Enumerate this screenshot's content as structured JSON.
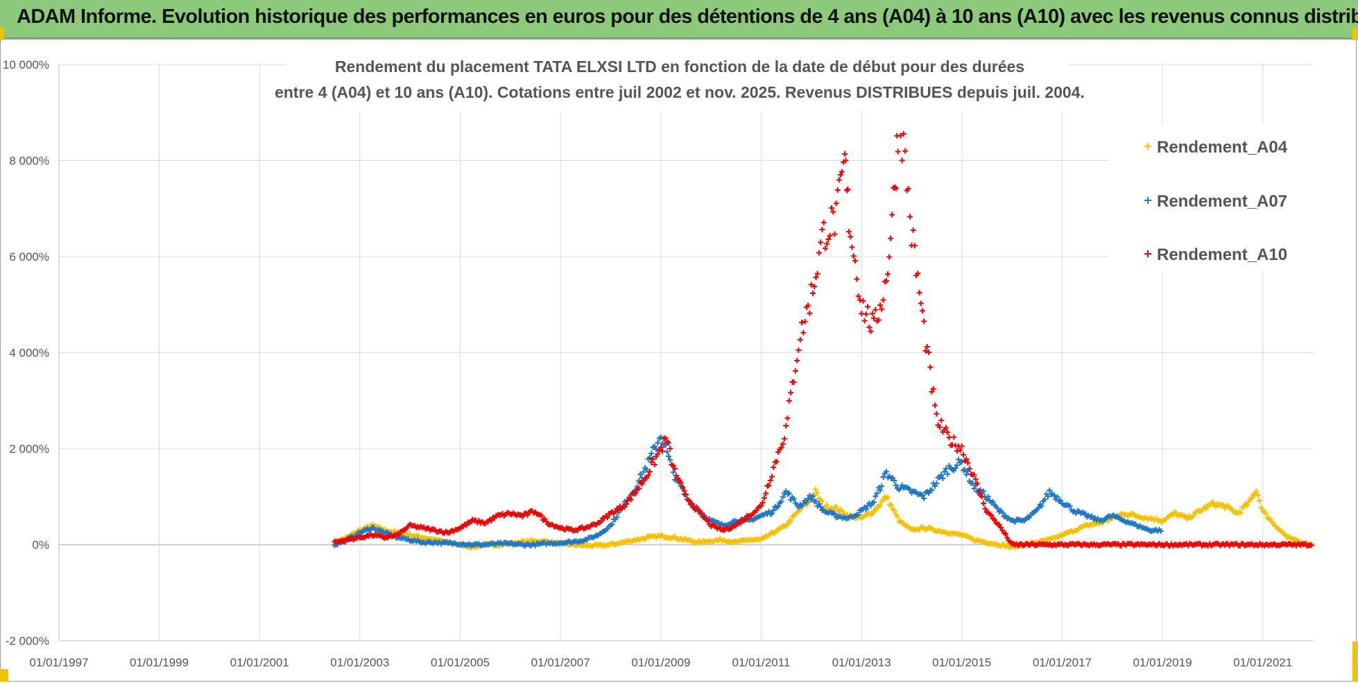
{
  "banner": {
    "title": "ADAM Informe. Evolution historique des performances en euros pour des détentions de 4 ans (A04) à 10 ans (A10) avec les revenus connus distribués"
  },
  "colors": {
    "banner": "#8cc97a",
    "A04": "#f5c000",
    "A07": "#1f77c4",
    "A10": "#ee0000",
    "grid": "#d9d9d9"
  },
  "chart_data": {
    "type": "scatter",
    "title_lines": [
      "Rendement du placement TATA ELXSI LTD en fonction de la date de début pour des durées",
      "entre 4 (A04) et 10 ans (A10). Cotations entre juil 2002 et nov. 2025. Revenus DISTRIBUES depuis juil. 2004."
    ],
    "x_range": [
      "1997-01-01",
      "2022-01-01"
    ],
    "x_ticks": [
      "01/01/1997",
      "01/01/1999",
      "01/01/2001",
      "01/01/2003",
      "01/01/2005",
      "01/01/2007",
      "01/01/2009",
      "01/01/2011",
      "01/01/2013",
      "01/01/2015",
      "01/01/2017",
      "01/01/2019",
      "01/01/2021"
    ],
    "y_range": [
      -2000,
      10000
    ],
    "y_ticks": [
      -2000,
      0,
      2000,
      4000,
      6000,
      8000,
      10000
    ],
    "y_tick_labels": [
      "-2 000%",
      "0%",
      "2 000%",
      "4 000%",
      "6 000%",
      "8 000%",
      "10 000%"
    ],
    "y_unit": "%",
    "grid": true,
    "legend_position": "right",
    "marker": "+",
    "series": [
      {
        "name": "Rendement_A04",
        "color_key": "A04",
        "points": [
          [
            "2002-07-01",
            50
          ],
          [
            "2002-10-01",
            150
          ],
          [
            "2003-01-01",
            300
          ],
          [
            "2003-04-01",
            400
          ],
          [
            "2003-07-01",
            300
          ],
          [
            "2003-10-01",
            250
          ],
          [
            "2004-01-01",
            200
          ],
          [
            "2004-04-01",
            150
          ],
          [
            "2004-07-01",
            100
          ],
          [
            "2004-10-01",
            50
          ],
          [
            "2005-01-01",
            0
          ],
          [
            "2005-04-01",
            -50
          ],
          [
            "2005-07-01",
            0
          ],
          [
            "2005-10-01",
            0
          ],
          [
            "2006-01-01",
            20
          ],
          [
            "2006-04-01",
            60
          ],
          [
            "2006-07-01",
            80
          ],
          [
            "2006-10-01",
            60
          ],
          [
            "2007-01-01",
            20
          ],
          [
            "2007-04-01",
            0
          ],
          [
            "2007-07-01",
            -20
          ],
          [
            "2007-10-01",
            -20
          ],
          [
            "2008-01-01",
            0
          ],
          [
            "2008-04-01",
            50
          ],
          [
            "2008-07-01",
            100
          ],
          [
            "2008-10-01",
            150
          ],
          [
            "2009-01-01",
            180
          ],
          [
            "2009-04-01",
            150
          ],
          [
            "2009-07-01",
            100
          ],
          [
            "2009-10-01",
            50
          ],
          [
            "2010-01-01",
            80
          ],
          [
            "2010-04-01",
            100
          ],
          [
            "2010-07-01",
            50
          ],
          [
            "2010-10-01",
            100
          ],
          [
            "2011-01-01",
            100
          ],
          [
            "2011-04-01",
            250
          ],
          [
            "2011-07-01",
            400
          ],
          [
            "2011-10-01",
            700
          ],
          [
            "2012-01-01",
            950
          ],
          [
            "2012-02-01",
            1100
          ],
          [
            "2012-04-01",
            800
          ],
          [
            "2012-07-01",
            750
          ],
          [
            "2012-10-01",
            600
          ],
          [
            "2013-01-01",
            550
          ],
          [
            "2013-04-01",
            700
          ],
          [
            "2013-07-01",
            1000
          ],
          [
            "2013-10-01",
            500
          ],
          [
            "2014-01-01",
            300
          ],
          [
            "2014-04-01",
            350
          ],
          [
            "2014-07-01",
            300
          ],
          [
            "2014-10-01",
            250
          ],
          [
            "2015-01-01",
            200
          ],
          [
            "2015-04-01",
            100
          ],
          [
            "2015-07-01",
            50
          ],
          [
            "2015-10-01",
            0
          ],
          [
            "2016-01-01",
            -50
          ],
          [
            "2016-04-01",
            0
          ],
          [
            "2016-07-01",
            50
          ],
          [
            "2016-10-01",
            100
          ],
          [
            "2017-01-01",
            200
          ],
          [
            "2017-04-01",
            300
          ],
          [
            "2017-07-01",
            400
          ],
          [
            "2017-10-01",
            450
          ],
          [
            "2018-01-01",
            550
          ],
          [
            "2018-04-01",
            650
          ],
          [
            "2018-07-01",
            600
          ],
          [
            "2018-10-01",
            550
          ],
          [
            "2019-01-01",
            500
          ],
          [
            "2019-04-01",
            650
          ],
          [
            "2019-07-01",
            550
          ],
          [
            "2019-10-01",
            700
          ],
          [
            "2020-01-01",
            850
          ],
          [
            "2020-04-01",
            800
          ],
          [
            "2020-07-01",
            650
          ],
          [
            "2020-10-01",
            900
          ],
          [
            "2020-11-15",
            1150
          ],
          [
            "2021-01-01",
            700
          ],
          [
            "2021-04-01",
            400
          ],
          [
            "2021-07-01",
            150
          ],
          [
            "2021-10-01",
            50
          ],
          [
            "2022-01-01",
            0
          ]
        ]
      },
      {
        "name": "Rendement_A07",
        "color_key": "A07",
        "points": [
          [
            "2002-07-01",
            0
          ],
          [
            "2002-10-01",
            100
          ],
          [
            "2003-01-01",
            250
          ],
          [
            "2003-04-01",
            350
          ],
          [
            "2003-07-01",
            250
          ],
          [
            "2003-10-01",
            150
          ],
          [
            "2004-01-01",
            100
          ],
          [
            "2004-04-01",
            50
          ],
          [
            "2004-07-01",
            50
          ],
          [
            "2004-10-01",
            30
          ],
          [
            "2005-01-01",
            20
          ],
          [
            "2005-04-01",
            0
          ],
          [
            "2005-07-01",
            0
          ],
          [
            "2005-10-01",
            20
          ],
          [
            "2006-01-01",
            20
          ],
          [
            "2006-04-01",
            0
          ],
          [
            "2006-07-01",
            0
          ],
          [
            "2006-10-01",
            30
          ],
          [
            "2007-01-01",
            40
          ],
          [
            "2007-04-01",
            60
          ],
          [
            "2007-07-01",
            100
          ],
          [
            "2007-10-01",
            200
          ],
          [
            "2008-01-01",
            400
          ],
          [
            "2008-04-01",
            800
          ],
          [
            "2008-07-01",
            1200
          ],
          [
            "2008-10-01",
            1700
          ],
          [
            "2009-01-01",
            2300
          ],
          [
            "2009-02-15",
            1900
          ],
          [
            "2009-04-01",
            1500
          ],
          [
            "2009-07-01",
            1000
          ],
          [
            "2009-10-01",
            700
          ],
          [
            "2010-01-01",
            500
          ],
          [
            "2010-04-01",
            400
          ],
          [
            "2010-07-01",
            500
          ],
          [
            "2010-10-01",
            500
          ],
          [
            "2011-01-01",
            600
          ],
          [
            "2011-04-01",
            700
          ],
          [
            "2011-07-01",
            1100
          ],
          [
            "2011-10-01",
            800
          ],
          [
            "2012-01-01",
            1000
          ],
          [
            "2012-04-01",
            700
          ],
          [
            "2012-07-01",
            600
          ],
          [
            "2012-10-01",
            550
          ],
          [
            "2013-01-01",
            700
          ],
          [
            "2013-04-01",
            900
          ],
          [
            "2013-07-01",
            1500
          ],
          [
            "2013-10-01",
            1200
          ],
          [
            "2014-01-01",
            1100
          ],
          [
            "2014-04-01",
            1000
          ],
          [
            "2014-07-01",
            1300
          ],
          [
            "2014-10-01",
            1600
          ],
          [
            "2015-01-01",
            1700
          ],
          [
            "2015-04-01",
            1200
          ],
          [
            "2015-07-01",
            1000
          ],
          [
            "2015-10-01",
            700
          ],
          [
            "2016-01-01",
            500
          ],
          [
            "2016-04-01",
            500
          ],
          [
            "2016-07-01",
            700
          ],
          [
            "2016-10-01",
            1100
          ],
          [
            "2017-01-01",
            900
          ],
          [
            "2017-04-01",
            700
          ],
          [
            "2017-07-01",
            600
          ],
          [
            "2017-10-01",
            500
          ],
          [
            "2018-01-01",
            600
          ],
          [
            "2018-04-01",
            500
          ],
          [
            "2018-07-01",
            400
          ],
          [
            "2018-10-01",
            300
          ],
          [
            "2019-01-01",
            300
          ]
        ]
      },
      {
        "name": "Rendement_A10",
        "color_key": "A10",
        "points": [
          [
            "2002-07-01",
            50
          ],
          [
            "2002-10-01",
            100
          ],
          [
            "2003-01-01",
            150
          ],
          [
            "2003-04-01",
            200
          ],
          [
            "2003-07-01",
            150
          ],
          [
            "2003-10-01",
            200
          ],
          [
            "2004-01-01",
            400
          ],
          [
            "2004-04-01",
            350
          ],
          [
            "2004-07-01",
            300
          ],
          [
            "2004-10-01",
            250
          ],
          [
            "2005-01-01",
            350
          ],
          [
            "2005-04-01",
            500
          ],
          [
            "2005-07-01",
            450
          ],
          [
            "2005-10-01",
            600
          ],
          [
            "2006-01-01",
            650
          ],
          [
            "2006-04-01",
            600
          ],
          [
            "2006-07-01",
            700
          ],
          [
            "2006-10-01",
            450
          ],
          [
            "2007-01-01",
            350
          ],
          [
            "2007-04-01",
            300
          ],
          [
            "2007-07-01",
            350
          ],
          [
            "2007-10-01",
            450
          ],
          [
            "2008-01-01",
            650
          ],
          [
            "2008-04-01",
            800
          ],
          [
            "2008-07-01",
            1100
          ],
          [
            "2008-10-01",
            1500
          ],
          [
            "2009-01-01",
            2000
          ],
          [
            "2009-02-15",
            2200
          ],
          [
            "2009-04-01",
            1600
          ],
          [
            "2009-07-01",
            1000
          ],
          [
            "2009-10-01",
            700
          ],
          [
            "2010-01-01",
            400
          ],
          [
            "2010-04-01",
            300
          ],
          [
            "2010-07-01",
            400
          ],
          [
            "2010-10-01",
            600
          ],
          [
            "2011-01-01",
            800
          ],
          [
            "2011-04-01",
            1600
          ],
          [
            "2011-07-01",
            2400
          ],
          [
            "2011-10-01",
            4200
          ],
          [
            "2012-01-01",
            5200
          ],
          [
            "2012-04-01",
            6500
          ],
          [
            "2012-07-01",
            6800
          ],
          [
            "2012-09-01",
            8000
          ],
          [
            "2012-10-01",
            6800
          ],
          [
            "2013-01-01",
            5000
          ],
          [
            "2013-04-01",
            4500
          ],
          [
            "2013-07-01",
            5500
          ],
          [
            "2013-09-01",
            7500
          ],
          [
            "2013-10-01",
            9000
          ],
          [
            "2013-11-15",
            8000
          ],
          [
            "2014-01-01",
            6500
          ],
          [
            "2014-04-01",
            4500
          ],
          [
            "2014-07-01",
            2600
          ],
          [
            "2014-10-01",
            2200
          ],
          [
            "2015-01-01",
            2000
          ],
          [
            "2015-04-01",
            1400
          ],
          [
            "2015-07-01",
            700
          ],
          [
            "2015-10-01",
            400
          ],
          [
            "2016-01-01",
            0
          ],
          [
            "2017-01-01",
            0
          ],
          [
            "2018-01-01",
            0
          ],
          [
            "2019-01-01",
            0
          ],
          [
            "2020-01-01",
            0
          ],
          [
            "2021-01-01",
            0
          ],
          [
            "2022-01-01",
            0
          ]
        ]
      }
    ]
  }
}
